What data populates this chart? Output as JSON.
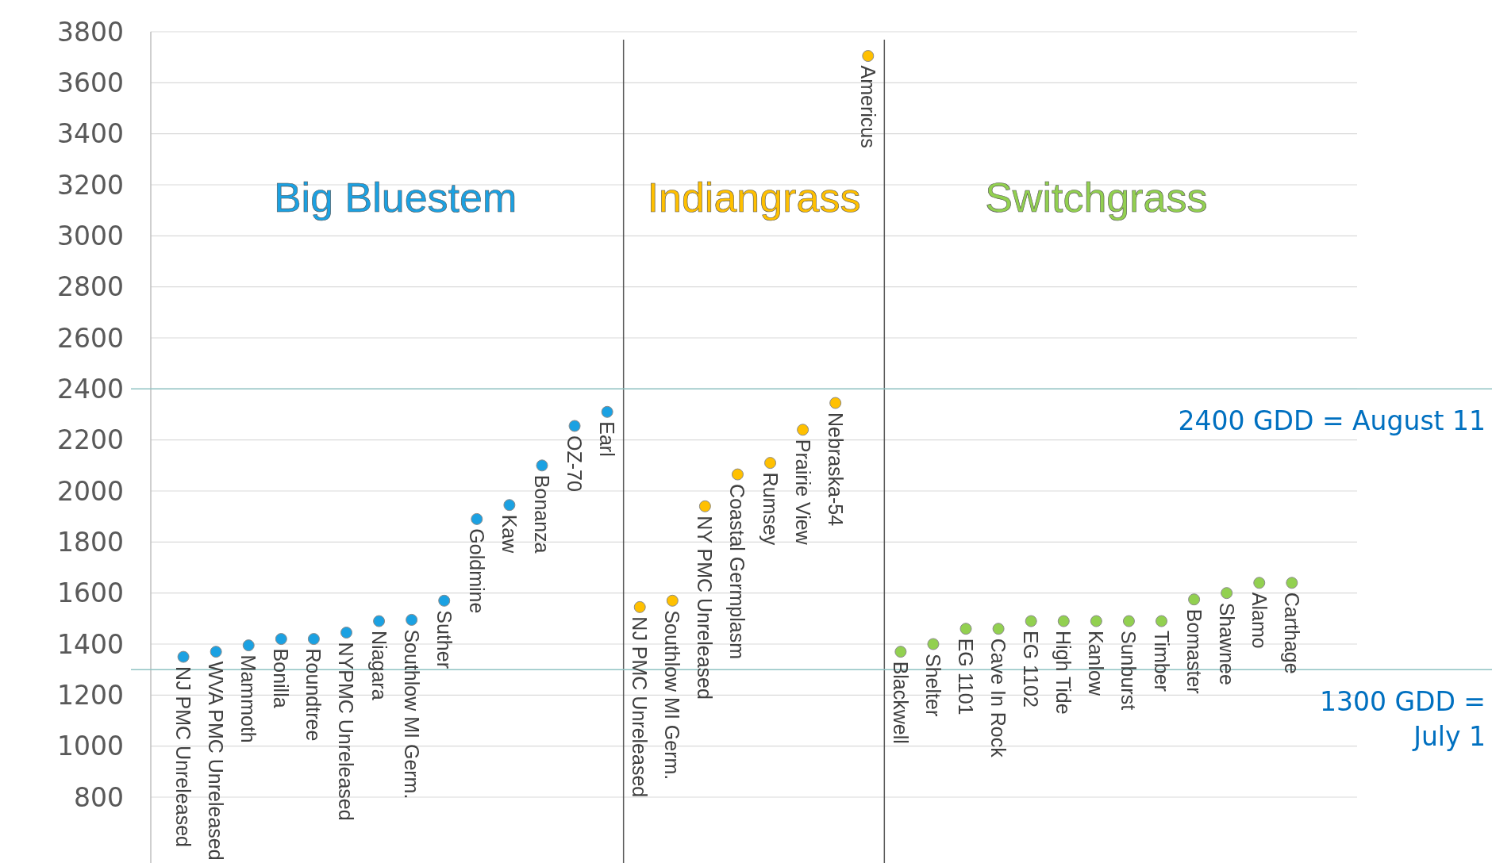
{
  "chart_data": {
    "type": "scatter",
    "marker": "circle",
    "grid": "y",
    "ylim": [
      800,
      3800
    ],
    "yticks": [
      800,
      1000,
      1200,
      1400,
      1600,
      1800,
      2000,
      2200,
      2400,
      2600,
      2800,
      3000,
      3200,
      3400,
      3600,
      3800
    ],
    "categories": [
      "NJ PMC Unreleased",
      "WVA PMC Unreleased",
      "Mammoth",
      "Bonilla",
      "Roundtree",
      "NYPMC Unreleased",
      "Niagara",
      "Southlow MI Germ.",
      "Suther",
      "Goldmine",
      "Kaw",
      "Bonanza",
      "OZ-70",
      "Earl",
      "NJ PMC Unreleased",
      "Southlow MI Germ.",
      "NY PMC Unreleased",
      "Coastal Germplasm",
      "Rumsey",
      "Prairie View",
      "Nebraska-54",
      "Americus",
      "Blackwell",
      "Shelter",
      "EG 1101",
      "Cave In Rock",
      "EG 1102",
      "High Tide",
      "Kanlow",
      "Sunburst",
      "Timber",
      "Bomaster",
      "Shawnee",
      "Alamo",
      "Carthage"
    ],
    "series": [
      {
        "name": "Big Bluestem",
        "color": "#1ba1e2",
        "values": [
          1350,
          1370,
          1395,
          1420,
          1420,
          1445,
          1490,
          1495,
          1570,
          1890,
          1945,
          2100,
          2255,
          2310,
          null,
          null,
          null,
          null,
          null,
          null,
          null,
          null,
          null,
          null,
          null,
          null,
          null,
          null,
          null,
          null,
          null,
          null,
          null,
          null,
          null
        ]
      },
      {
        "name": "Indiangrass",
        "color": "#ffc000",
        "values": [
          null,
          null,
          null,
          null,
          null,
          null,
          null,
          null,
          null,
          null,
          null,
          null,
          null,
          null,
          1545,
          1570,
          1940,
          2065,
          2110,
          2240,
          2345,
          3705,
          null,
          null,
          null,
          null,
          null,
          null,
          null,
          null,
          null,
          null,
          null,
          null,
          null
        ]
      },
      {
        "name": "Switchgrass",
        "color": "#92d050",
        "values": [
          null,
          null,
          null,
          null,
          null,
          null,
          null,
          null,
          null,
          null,
          null,
          null,
          null,
          null,
          null,
          null,
          null,
          null,
          null,
          null,
          null,
          null,
          1370,
          1400,
          1460,
          1460,
          1490,
          1490,
          1490,
          1490,
          1490,
          1575,
          1600,
          1640,
          1640
        ]
      }
    ],
    "ref_lines": [
      {
        "axis": "y",
        "value": 2400,
        "label": "2400 GDD = August 11",
        "color": "#8fc3c3"
      },
      {
        "axis": "y",
        "value": 1300,
        "label": "1300 GDD = July 1",
        "color": "#8fc3c3"
      }
    ]
  }
}
